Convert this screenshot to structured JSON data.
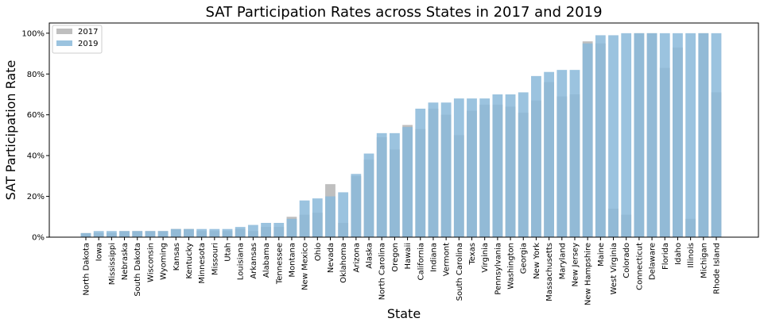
{
  "chart_data": {
    "type": "bar",
    "title": "SAT Participation Rates across States in 2017 and 2019",
    "xlabel": "State",
    "ylabel": "SAT Participation Rate",
    "ylim": [
      0,
      105
    ],
    "y_ticks": [
      "0%",
      "20%",
      "40%",
      "60%",
      "80%",
      "100%"
    ],
    "legend_position": "top-left",
    "categories": [
      "North Dakota",
      "Iowa",
      "Mississippi",
      "Nebraska",
      "South Dakota",
      "Wisconsin",
      "Wyoming",
      "Kansas",
      "Kentucky",
      "Minnesota",
      "Missouri",
      "Utah",
      "Louisiana",
      "Arkansas",
      "Alabama",
      "Tennessee",
      "Montana",
      "New Mexico",
      "Ohio",
      "Nevada",
      "Oklahoma",
      "Arizona",
      "Alaska",
      "North Carolina",
      "Oregon",
      "Hawaii",
      "California",
      "Indiana",
      "Vermont",
      "South Carolina",
      "Texas",
      "Virginia",
      "Pennsylvania",
      "Washington",
      "Georgia",
      "New York",
      "Massachusetts",
      "Maryland",
      "New Jersey",
      "New Hampshire",
      "Maine",
      "West Virginia",
      "Colorado",
      "Connecticut",
      "Delaware",
      "Florida",
      "Idaho",
      "Illinois",
      "Michigan",
      "Rhode Island"
    ],
    "series": [
      {
        "name": "2017",
        "color": "#bfbfbf",
        "values": [
          2,
          2,
          2,
          3,
          3,
          3,
          3,
          4,
          4,
          3,
          3,
          3,
          4,
          3,
          5,
          5,
          10,
          11,
          12,
          26,
          7,
          30,
          38,
          49,
          43,
          55,
          53,
          63,
          60,
          50,
          62,
          65,
          65,
          64,
          61,
          67,
          76,
          69,
          70,
          96,
          95,
          14,
          11,
          100,
          100,
          83,
          93,
          9,
          100,
          71
        ]
      },
      {
        "name": "2019",
        "color": "#8ab8d9",
        "values": [
          2,
          3,
          3,
          3,
          3,
          3,
          3,
          4,
          4,
          4,
          4,
          4,
          5,
          6,
          7,
          7,
          9,
          18,
          19,
          20,
          22,
          31,
          41,
          51,
          51,
          54,
          63,
          66,
          66,
          68,
          68,
          68,
          70,
          70,
          71,
          79,
          81,
          82,
          82,
          95,
          99,
          99,
          100,
          100,
          100,
          100,
          100,
          100,
          100,
          100
        ]
      }
    ]
  }
}
